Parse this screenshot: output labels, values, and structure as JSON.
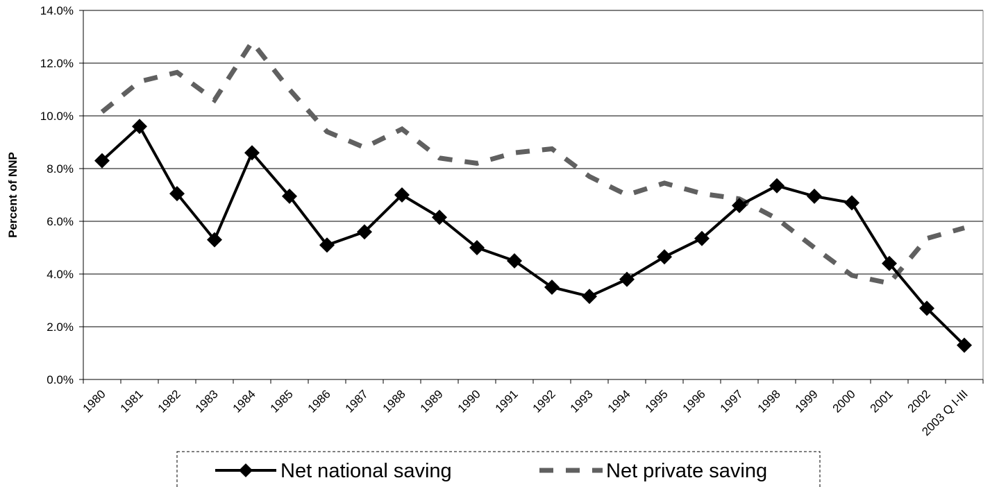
{
  "chart_data": {
    "type": "line",
    "title": "",
    "xlabel": "",
    "ylabel": "Percent of NNP",
    "ylim": [
      0,
      14
    ],
    "yticks": [
      "0.0%",
      "2.0%",
      "4.0%",
      "6.0%",
      "8.0%",
      "10.0%",
      "12.0%",
      "14.0%"
    ],
    "grid": "horizontal",
    "legend_position": "bottom",
    "categories": [
      "1980",
      "1981",
      "1982",
      "1983",
      "1984",
      "1985",
      "1986",
      "1987",
      "1988",
      "1989",
      "1990",
      "1991",
      "1992",
      "1993",
      "1994",
      "1995",
      "1996",
      "1997",
      "1998",
      "1999",
      "2000",
      "2001",
      "2002",
      "2003 Q I-III"
    ],
    "series": [
      {
        "name": "Net national saving",
        "style": "solid-diamond",
        "color": "#000000",
        "values": [
          8.3,
          9.6,
          7.05,
          5.3,
          8.6,
          6.95,
          5.1,
          5.6,
          7.0,
          6.15,
          5.0,
          4.5,
          3.5,
          3.15,
          3.8,
          4.65,
          5.35,
          6.6,
          7.35,
          6.95,
          6.7,
          4.4,
          2.7,
          1.3
        ]
      },
      {
        "name": "Net private saving",
        "style": "dashed",
        "color": "#606060",
        "values": [
          10.15,
          11.3,
          11.65,
          10.6,
          12.8,
          11.0,
          9.4,
          8.8,
          9.5,
          8.4,
          8.2,
          8.6,
          8.75,
          7.7,
          7.0,
          7.45,
          7.05,
          6.85,
          6.1,
          5.0,
          3.95,
          3.65,
          5.35,
          5.75
        ]
      }
    ]
  }
}
